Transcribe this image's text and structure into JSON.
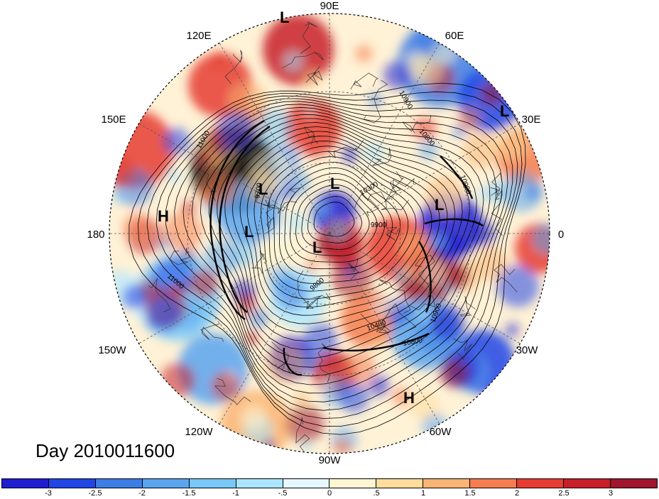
{
  "title": "Day 2010011600",
  "longitude_labels": [
    "90E",
    "60E",
    "30E",
    "0",
    "30W",
    "60W",
    "90W",
    "120W",
    "150W",
    "180",
    "150E",
    "120E"
  ],
  "pressure_systems": [
    {
      "label": "L",
      "lon": "near 90E"
    },
    {
      "label": "L",
      "lon": "near 30E"
    },
    {
      "label": "L",
      "lon": "east Atlantic"
    },
    {
      "label": "L",
      "lon": "Siberia"
    },
    {
      "label": "L",
      "lon": "Bering"
    },
    {
      "label": "L",
      "lon": "North Pacific"
    },
    {
      "label": "L",
      "lon": "Canada"
    },
    {
      "label": "H",
      "lon": "near 180"
    },
    {
      "label": "H",
      "lon": "near 60W"
    }
  ],
  "contour_labels": [
    "10900",
    "10800",
    "11000",
    "10900",
    "9700",
    "10300",
    "9900",
    "10400",
    "9800",
    "11000",
    "10800",
    "10900"
  ],
  "colorbar": {
    "tick_labels": [
      "-3",
      "-2.5",
      "-2",
      "-1.5",
      "-1",
      "-.5",
      "0",
      ".5",
      "1",
      "1.5",
      "2",
      "2.5",
      "3"
    ],
    "colors": [
      "#1f1ed2",
      "#2046e6",
      "#3c7de6",
      "#5aa5f0",
      "#78c8fa",
      "#aae6ff",
      "#e6f8ff",
      "#fff5d2",
      "#ffdc9b",
      "#fab473",
      "#f57d50",
      "#e63c32",
      "#c81e28",
      "#a0142d"
    ]
  }
}
